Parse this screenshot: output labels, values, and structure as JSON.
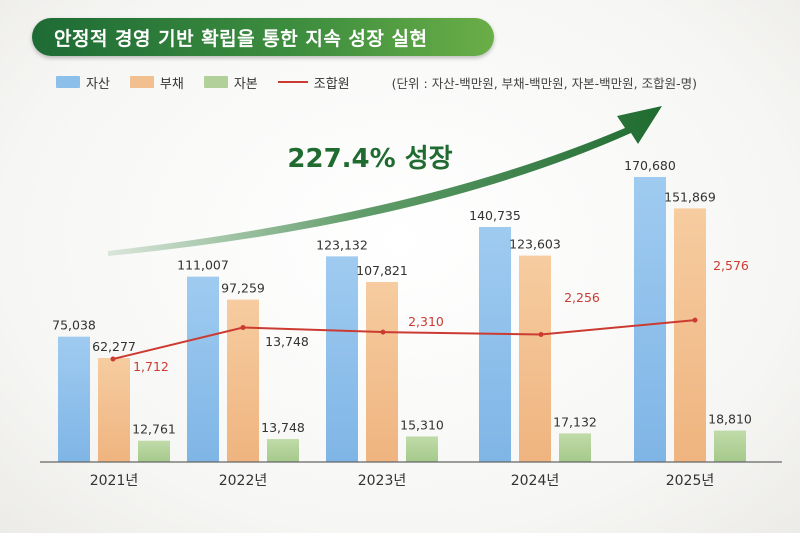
{
  "title": "안정적 경영 기반 확립을 통한 지속 성장 실현",
  "legend": {
    "assets": "자산",
    "liabilities": "부채",
    "equity": "자본",
    "members": "조합원",
    "unit_note": "(단위 : 자산-백만원, 부채-백만원, 자본-백만원, 조합원-명)"
  },
  "growth_label": "227.4% 성장",
  "colors": {
    "assets": "#8cbfea",
    "liabilities": "#f2bf8f",
    "equity": "#b2d19a",
    "members": "#cc3b32",
    "arrow": "#2e7d3a"
  },
  "chart_data": {
    "type": "bar",
    "categories": [
      "2021년",
      "2022년",
      "2023년",
      "2024년",
      "2025년"
    ],
    "series": [
      {
        "name": "자산",
        "values": [
          75038,
          111007,
          123132,
          140735,
          170680
        ],
        "labels": [
          "75,038",
          "111,007",
          "123,132",
          "140,735",
          "170,680"
        ]
      },
      {
        "name": "부채",
        "values": [
          62277,
          97259,
          107821,
          123603,
          151869
        ],
        "labels": [
          "62,277",
          "97,259",
          "107,821",
          "123,603",
          "151,869"
        ]
      },
      {
        "name": "자본",
        "values": [
          12761,
          13748,
          15310,
          17132,
          18810
        ],
        "labels": [
          "12,761",
          "13,748",
          "15,310",
          "17,132",
          "18,810"
        ]
      }
    ],
    "line_series": {
      "name": "조합원",
      "type": "line",
      "values": [
        1712,
        13748,
        2310,
        2256,
        2576
      ],
      "labels": [
        "1,712",
        "13,748",
        "2,310",
        "2,256",
        "2,576"
      ]
    },
    "ylim": [
      0,
      190000
    ]
  }
}
